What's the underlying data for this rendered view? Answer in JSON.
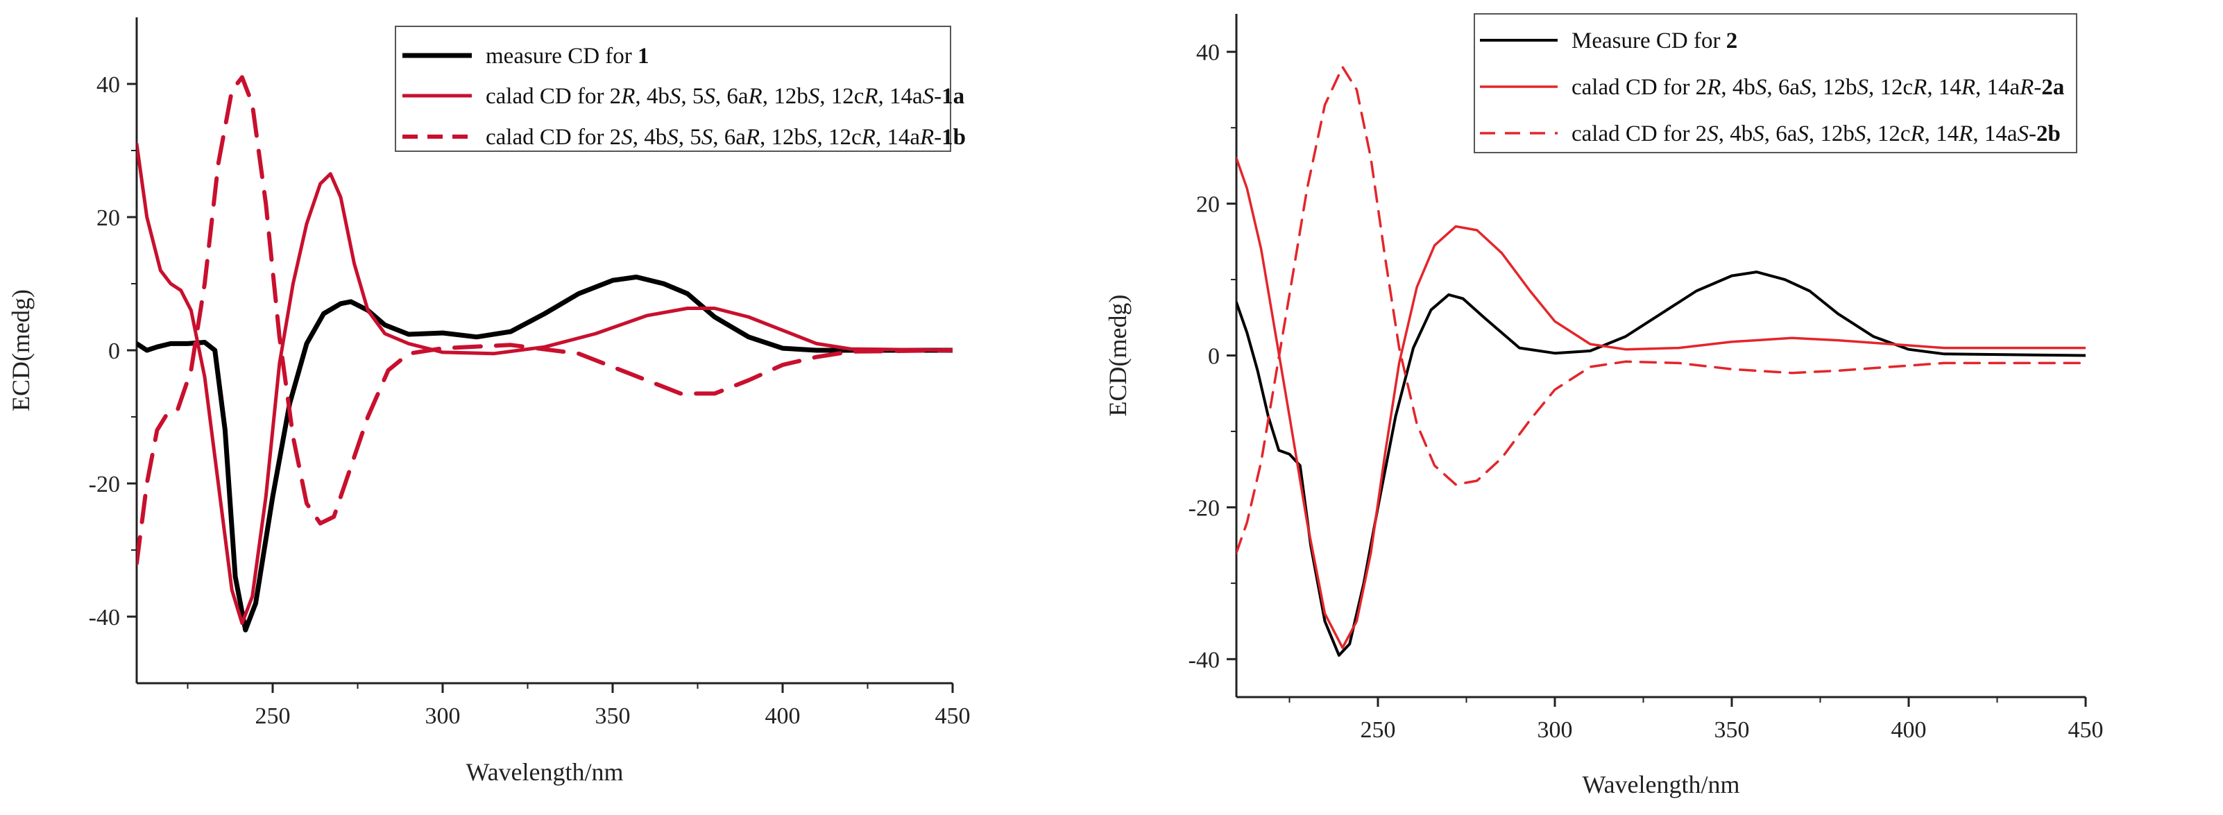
{
  "chart_data": [
    {
      "type": "line",
      "title": "",
      "xlabel": "Wavelength/nm",
      "ylabel": "ECD(medg)",
      "xlim": [
        210,
        450
      ],
      "ylim": [
        -50,
        50
      ],
      "xticks": [
        250,
        300,
        350,
        400,
        450
      ],
      "yticks": [
        -40,
        -20,
        0,
        20,
        40
      ],
      "legend_position": "top-right",
      "series": [
        {
          "name": "measure CD for 1",
          "legend": [
            {
              "t": "measure CD for "
            },
            {
              "t": "1",
              "b": true
            }
          ],
          "color": "#000000",
          "style": "solid",
          "points": [
            [
              210,
              1
            ],
            [
              213,
              0
            ],
            [
              216,
              0.5
            ],
            [
              220,
              1
            ],
            [
              225,
              1
            ],
            [
              230,
              1.2
            ],
            [
              233,
              0
            ],
            [
              236,
              -12
            ],
            [
              239,
              -34
            ],
            [
              242,
              -42
            ],
            [
              245,
              -38
            ],
            [
              250,
              -22
            ],
            [
              255,
              -8
            ],
            [
              260,
              1
            ],
            [
              265,
              5.5
            ],
            [
              270,
              7
            ],
            [
              273,
              7.3
            ],
            [
              278,
              6
            ],
            [
              283,
              3.8
            ],
            [
              290,
              2.4
            ],
            [
              300,
              2.6
            ],
            [
              310,
              2
            ],
            [
              320,
              2.8
            ],
            [
              330,
              5.5
            ],
            [
              340,
              8.5
            ],
            [
              350,
              10.5
            ],
            [
              357,
              11
            ],
            [
              365,
              10
            ],
            [
              372,
              8.5
            ],
            [
              380,
              5
            ],
            [
              390,
              2
            ],
            [
              400,
              0.3
            ],
            [
              410,
              0
            ],
            [
              450,
              0
            ]
          ]
        },
        {
          "name": "calad CD for 2R, 4bS, 5S, 6aR, 12bS, 12cR, 14aS-1a",
          "legend": [
            {
              "t": "calad CD for 2"
            },
            {
              "t": "R",
              "i": true
            },
            {
              "t": ", 4b"
            },
            {
              "t": "S",
              "i": true
            },
            {
              "t": ", 5"
            },
            {
              "t": "S",
              "i": true
            },
            {
              "t": ", 6a"
            },
            {
              "t": "R",
              "i": true
            },
            {
              "t": ", 12b"
            },
            {
              "t": "S",
              "i": true
            },
            {
              "t": ", 12c"
            },
            {
              "t": "R",
              "i": true
            },
            {
              "t": ", 14a"
            },
            {
              "t": "S",
              "i": true
            },
            {
              "t": "-"
            },
            {
              "t": "1a",
              "b": true
            }
          ],
          "color": "#c8102e",
          "style": "solid",
          "points": [
            [
              210,
              31
            ],
            [
              213,
              20
            ],
            [
              217,
              12
            ],
            [
              220,
              10
            ],
            [
              223,
              9
            ],
            [
              226,
              6
            ],
            [
              230,
              -4
            ],
            [
              234,
              -20
            ],
            [
              238,
              -36
            ],
            [
              241,
              -41
            ],
            [
              244,
              -37
            ],
            [
              248,
              -22
            ],
            [
              252,
              -2
            ],
            [
              256,
              10
            ],
            [
              260,
              19
            ],
            [
              264,
              25
            ],
            [
              267,
              26.5
            ],
            [
              270,
              23
            ],
            [
              274,
              13
            ],
            [
              278,
              6
            ],
            [
              283,
              2.5
            ],
            [
              290,
              1
            ],
            [
              300,
              -0.3
            ],
            [
              315,
              -0.5
            ],
            [
              330,
              0.5
            ],
            [
              345,
              2.5
            ],
            [
              360,
              5.2
            ],
            [
              372,
              6.3
            ],
            [
              380,
              6.3
            ],
            [
              390,
              5
            ],
            [
              400,
              3
            ],
            [
              410,
              1
            ],
            [
              420,
              0.2
            ],
            [
              450,
              0
            ]
          ]
        },
        {
          "name": "calad CD for 2S, 4bS, 5S, 6aR, 12bS, 12cR, 14aR-1b",
          "legend": [
            {
              "t": "calad CD for 2"
            },
            {
              "t": "S",
              "i": true
            },
            {
              "t": ", 4b"
            },
            {
              "t": "S",
              "i": true
            },
            {
              "t": ", 5"
            },
            {
              "t": "S",
              "i": true
            },
            {
              "t": ", 6a"
            },
            {
              "t": "R",
              "i": true
            },
            {
              "t": ", 12b"
            },
            {
              "t": "S",
              "i": true
            },
            {
              "t": ", 12c"
            },
            {
              "t": "R",
              "i": true
            },
            {
              "t": ", 14a"
            },
            {
              "t": "R",
              "i": true
            },
            {
              "t": "-"
            },
            {
              "t": "1b",
              "b": true
            }
          ],
          "color": "#c8102e",
          "style": "dashed",
          "points": [
            [
              210,
              -32
            ],
            [
              213,
              -20
            ],
            [
              216,
              -12
            ],
            [
              219,
              -9.5
            ],
            [
              222,
              -9
            ],
            [
              226,
              -3
            ],
            [
              230,
              10
            ],
            [
              234,
              28
            ],
            [
              238,
              39
            ],
            [
              241,
              41
            ],
            [
              244,
              37
            ],
            [
              248,
              22
            ],
            [
              252,
              2
            ],
            [
              256,
              -13
            ],
            [
              260,
              -23
            ],
            [
              264,
              -26
            ],
            [
              268,
              -25
            ],
            [
              272,
              -19
            ],
            [
              278,
              -10
            ],
            [
              284,
              -3
            ],
            [
              290,
              -0.5
            ],
            [
              300,
              0.3
            ],
            [
              320,
              0.8
            ],
            [
              340,
              -0.5
            ],
            [
              355,
              -3.5
            ],
            [
              370,
              -6.5
            ],
            [
              380,
              -6.5
            ],
            [
              390,
              -4.5
            ],
            [
              400,
              -2.2
            ],
            [
              410,
              -1
            ],
            [
              420,
              -0.2
            ],
            [
              450,
              0
            ]
          ]
        }
      ]
    },
    {
      "type": "line",
      "title": "",
      "xlabel": "Wavelength/nm",
      "ylabel": "ECD(medg)",
      "xlim": [
        210,
        450
      ],
      "ylim": [
        -45,
        45
      ],
      "xticks": [
        250,
        300,
        350,
        400,
        450
      ],
      "yticks": [
        -40,
        -20,
        0,
        20,
        40
      ],
      "legend_position": "top-right",
      "series": [
        {
          "name": "Measure CD for 2",
          "legend": [
            {
              "t": "Measure CD for "
            },
            {
              "t": "2",
              "b": true
            }
          ],
          "color": "#000000",
          "style": "solid",
          "points": [
            [
              210,
              7
            ],
            [
              213,
              3
            ],
            [
              216,
              -2
            ],
            [
              219,
              -8
            ],
            [
              222,
              -12.5
            ],
            [
              225,
              -13
            ],
            [
              228,
              -14.5
            ],
            [
              231,
              -25
            ],
            [
              235,
              -35
            ],
            [
              239,
              -39.5
            ],
            [
              242,
              -38
            ],
            [
              246,
              -30
            ],
            [
              250,
              -20
            ],
            [
              255,
              -8
            ],
            [
              260,
              1
            ],
            [
              265,
              6
            ],
            [
              270,
              8
            ],
            [
              274,
              7.5
            ],
            [
              280,
              5
            ],
            [
              290,
              1
            ],
            [
              300,
              0.3
            ],
            [
              310,
              0.6
            ],
            [
              320,
              2.5
            ],
            [
              330,
              5.5
            ],
            [
              340,
              8.5
            ],
            [
              350,
              10.5
            ],
            [
              357,
              11
            ],
            [
              365,
              10
            ],
            [
              372,
              8.5
            ],
            [
              380,
              5.5
            ],
            [
              390,
              2.5
            ],
            [
              400,
              0.8
            ],
            [
              410,
              0.2
            ],
            [
              450,
              0
            ]
          ]
        },
        {
          "name": "calad CD for 2R, 4bS, 6aS, 12bS, 12cR, 14R, 14aR-2a",
          "legend": [
            {
              "t": "calad CD for 2"
            },
            {
              "t": "R",
              "i": true
            },
            {
              "t": ", 4b"
            },
            {
              "t": "S",
              "i": true
            },
            {
              "t": ", 6a"
            },
            {
              "t": "S",
              "i": true
            },
            {
              "t": ", 12b"
            },
            {
              "t": "S",
              "i": true
            },
            {
              "t": ", 12c"
            },
            {
              "t": "R",
              "i": true
            },
            {
              "t": ", 14"
            },
            {
              "t": "R",
              "i": true
            },
            {
              "t": ", 14a"
            },
            {
              "t": "R",
              "i": true
            },
            {
              "t": "-"
            },
            {
              "t": "2a",
              "b": true
            }
          ],
          "color": "#e3262b",
          "style": "solid",
          "points": [
            [
              210,
              26
            ],
            [
              213,
              22
            ],
            [
              217,
              14
            ],
            [
              221,
              3
            ],
            [
              225,
              -8
            ],
            [
              230,
              -22
            ],
            [
              235,
              -34
            ],
            [
              240,
              -38.5
            ],
            [
              244,
              -35
            ],
            [
              248,
              -26
            ],
            [
              252,
              -13
            ],
            [
              256,
              -1
            ],
            [
              261,
              9
            ],
            [
              266,
              14.5
            ],
            [
              272,
              17
            ],
            [
              278,
              16.5
            ],
            [
              285,
              13.5
            ],
            [
              293,
              8.5
            ],
            [
              300,
              4.5
            ],
            [
              310,
              1.5
            ],
            [
              320,
              0.8
            ],
            [
              335,
              1
            ],
            [
              350,
              1.8
            ],
            [
              367,
              2.3
            ],
            [
              380,
              2
            ],
            [
              395,
              1.5
            ],
            [
              410,
              1
            ],
            [
              450,
              1
            ]
          ]
        },
        {
          "name": "calad CD for 2S, 4bS, 6aS, 12bS, 12cR, 14R, 14aS-2b",
          "legend": [
            {
              "t": "calad CD for 2"
            },
            {
              "t": "S",
              "i": true
            },
            {
              "t": ", 4b"
            },
            {
              "t": "S",
              "i": true
            },
            {
              "t": ", 6a"
            },
            {
              "t": "S",
              "i": true
            },
            {
              "t": ", 12b"
            },
            {
              "t": "S",
              "i": true
            },
            {
              "t": ", 12c"
            },
            {
              "t": "R",
              "i": true
            },
            {
              "t": ", 14"
            },
            {
              "t": "R",
              "i": true
            },
            {
              "t": ", 14a"
            },
            {
              "t": "S",
              "i": true
            },
            {
              "t": "-"
            },
            {
              "t": "2b",
              "b": true
            }
          ],
          "color": "#e3262b",
          "style": "dashed",
          "points": [
            [
              210,
              -26
            ],
            [
              213,
              -22
            ],
            [
              217,
              -14
            ],
            [
              221,
              -3
            ],
            [
              225,
              8
            ],
            [
              230,
              22
            ],
            [
              235,
              33
            ],
            [
              240,
              38
            ],
            [
              244,
              35
            ],
            [
              248,
              26
            ],
            [
              252,
              13
            ],
            [
              256,
              1
            ],
            [
              261,
              -9
            ],
            [
              266,
              -14.5
            ],
            [
              272,
              -17
            ],
            [
              278,
              -16.5
            ],
            [
              285,
              -13.5
            ],
            [
              293,
              -8.5
            ],
            [
              300,
              -4.5
            ],
            [
              310,
              -1.5
            ],
            [
              320,
              -0.8
            ],
            [
              335,
              -1
            ],
            [
              350,
              -1.8
            ],
            [
              367,
              -2.3
            ],
            [
              380,
              -2
            ],
            [
              395,
              -1.5
            ],
            [
              410,
              -1
            ],
            [
              450,
              -1
            ]
          ]
        }
      ]
    }
  ]
}
